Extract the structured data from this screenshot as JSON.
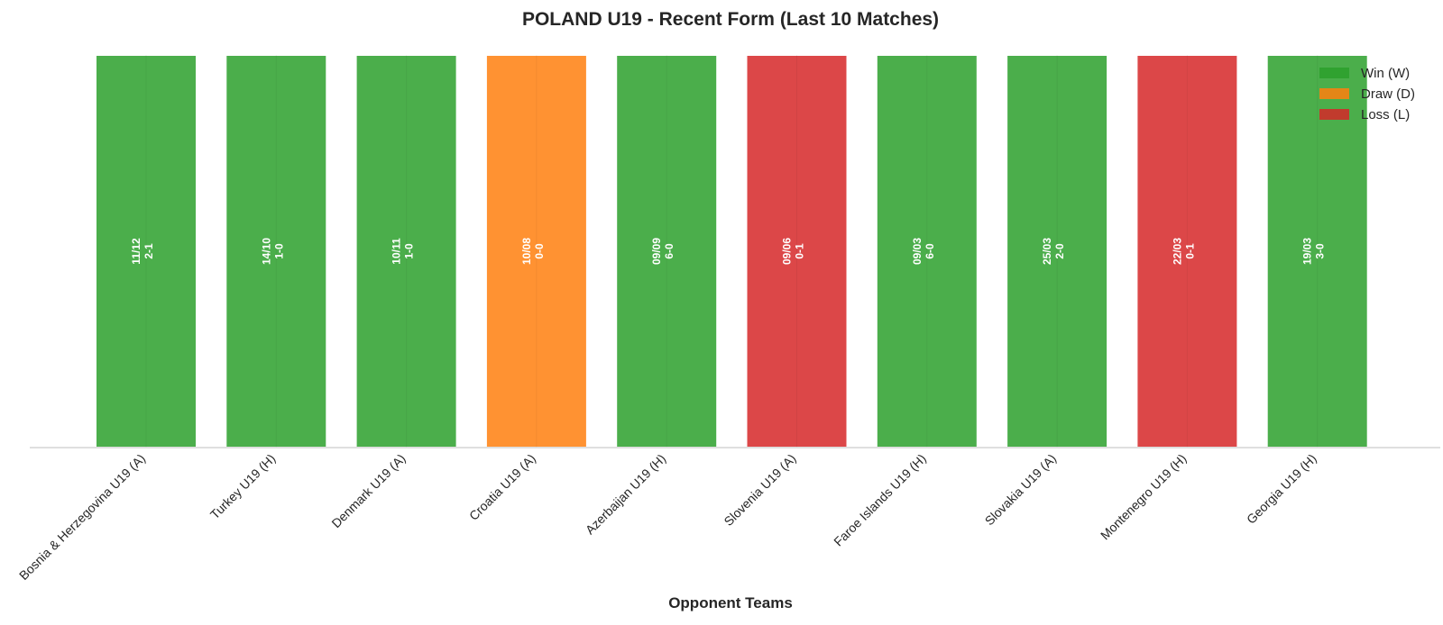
{
  "chart_data": {
    "type": "bar",
    "title": "POLAND U19 - Recent Form (Last 10 Matches)",
    "xlabel": "Opponent Teams",
    "ylabel": "",
    "categories": [
      "Bosnia & Herzegovina U19 (A)",
      "Turkey U19 (H)",
      "Denmark U19 (A)",
      "Croatia U19 (A)",
      "Azerbaijan U19 (H)",
      "Slovenia U19 (A)",
      "Faroe Islands U19 (H)",
      "Slovakia U19 (A)",
      "Montenegro U19 (H)",
      "Georgia U19 (H)"
    ],
    "values": [
      1,
      1,
      1,
      1,
      1,
      1,
      1,
      1,
      1,
      1
    ],
    "results": [
      "W",
      "W",
      "W",
      "D",
      "W",
      "L",
      "W",
      "W",
      "L",
      "W"
    ],
    "dates": [
      "11/12",
      "14/10",
      "10/11",
      "10/08",
      "09/09",
      "09/06",
      "09/03",
      "25/03",
      "22/03",
      "19/03"
    ],
    "scores": [
      "2-1",
      "1-0",
      "1-0",
      "0-0",
      "6-0",
      "0-1",
      "6-0",
      "2-0",
      "0-1",
      "3-0"
    ],
    "ylim": [
      0,
      1
    ],
    "grid": false,
    "legend": {
      "placement": "top-right",
      "entries": [
        {
          "key": "W",
          "label": "Win (W)",
          "color": "#2ca02c"
        },
        {
          "key": "D",
          "label": "Draw (D)",
          "color": "#ff7f0e"
        },
        {
          "key": "L",
          "label": "Loss (L)",
          "color": "#d62728"
        }
      ]
    }
  }
}
